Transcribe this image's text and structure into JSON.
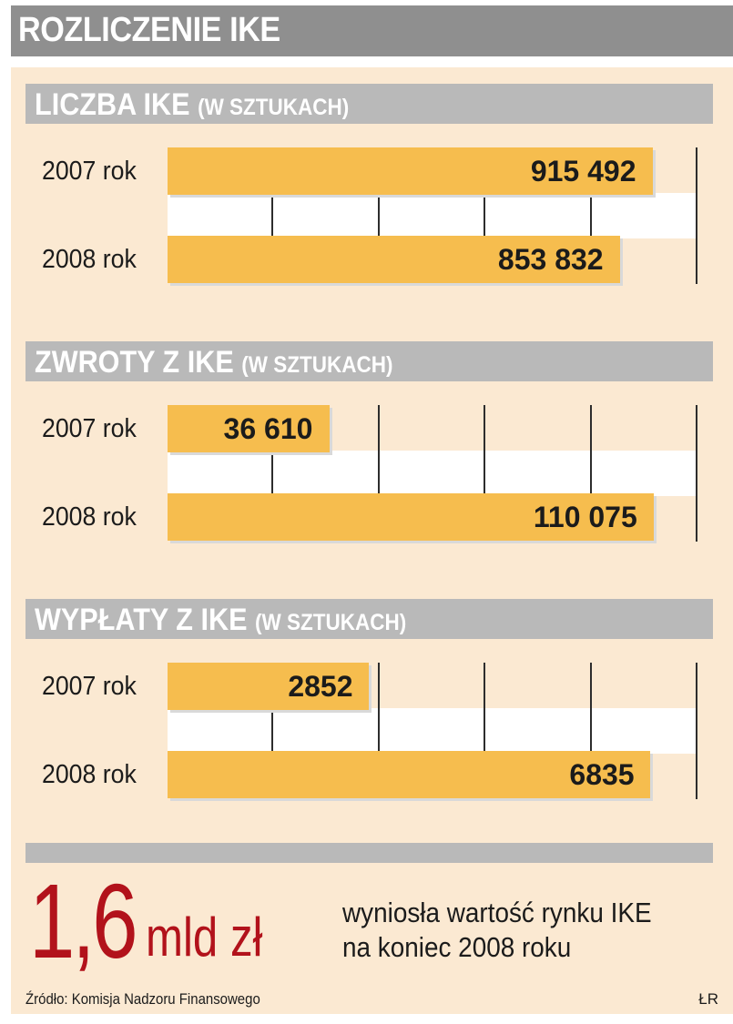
{
  "title": "ROZLICZENIE IKE",
  "chart_data": [
    {
      "type": "bar",
      "title": "LICZBA IKE",
      "unit": "(W SZTUKACH)",
      "categories": [
        "2007 rok",
        "2008 rok"
      ],
      "values": [
        915492,
        853832
      ],
      "value_labels": [
        "915 492",
        "853 832"
      ],
      "xlim": [
        0,
        1000000
      ],
      "grid": true
    },
    {
      "type": "bar",
      "title": "ZWROTY Z IKE",
      "unit": "(W SZTUKACH)",
      "categories": [
        "2007 rok",
        "2008 rok"
      ],
      "values": [
        36610,
        110075
      ],
      "value_labels": [
        "36 610",
        "110 075"
      ],
      "xlim": [
        0,
        120000
      ],
      "grid": true
    },
    {
      "type": "bar",
      "title": "WYPŁATY Z IKE",
      "unit": "(W SZTUKACH)",
      "categories": [
        "2007 rok",
        "2008 rok"
      ],
      "values": [
        2852,
        6835
      ],
      "value_labels": [
        "2852",
        "6835"
      ],
      "xlim": [
        0,
        7500
      ],
      "grid": true
    }
  ],
  "summary": {
    "value": "1,6",
    "unit": "mld zł",
    "line1": "wyniosła wartość rynku IKE",
    "line2": "na koniec 2008 roku"
  },
  "source": "Źródło: Komisja Nadzoru Finansowego",
  "author": "ŁR",
  "colors": {
    "bar": "#f6bd4e",
    "panel": "#fbe9d2",
    "header": "#b9b9b9",
    "title_bar": "#8f8f8f",
    "highlight": "#b2121b"
  }
}
